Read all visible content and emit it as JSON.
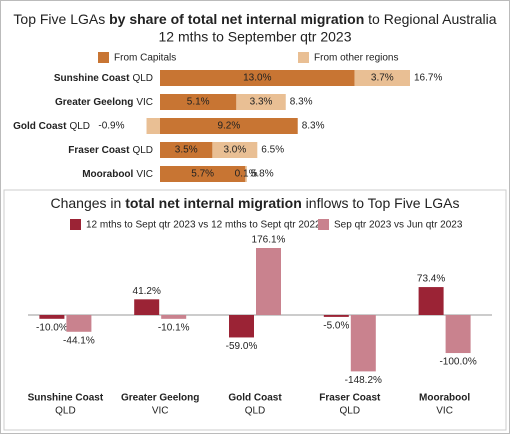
{
  "chart_data": [
    {
      "type": "stacked-bar-horizontal",
      "title_parts": [
        "Top Five LGAs ",
        "by share of total net internal migration",
        " to Regional Australia"
      ],
      "subtitle": "12 mths to September qtr 2023",
      "categories": [
        "Sunshine Coast",
        "Greater Geelong",
        "Gold Coast",
        "Fraser Coast",
        "Moorabool"
      ],
      "category_states": [
        "QLD",
        "VIC",
        "QLD",
        "QLD",
        "VIC"
      ],
      "series": [
        {
          "name": "From Capitals",
          "color": "#c87533",
          "values": [
            13.0,
            5.1,
            9.2,
            3.5,
            5.7
          ],
          "value_labels": [
            "13.0%",
            "5.1%",
            "9.2%",
            "3.5%",
            "5.7%"
          ]
        },
        {
          "name": "From other regions",
          "color": "#e9bf94",
          "values": [
            3.7,
            3.3,
            -0.9,
            3.0,
            0.1
          ],
          "value_labels": [
            "3.7%",
            "3.3%",
            "-0.9%",
            "3.0%",
            "0.1%"
          ]
        }
      ],
      "totals": [
        16.7,
        8.3,
        8.3,
        6.5,
        5.8
      ],
      "total_labels": [
        "16.7%",
        "8.3%",
        "8.3%",
        "6.5%",
        "5.8%"
      ]
    },
    {
      "type": "grouped-bar",
      "title_parts": [
        "Changes in ",
        "total net internal migration",
        " inflows to Top Five LGAs"
      ],
      "categories": [
        "Sunshine Coast",
        "Greater Geelong",
        "Gold Coast",
        "Fraser Coast",
        "Moorabool"
      ],
      "category_states": [
        "QLD",
        "VIC",
        "QLD",
        "QLD",
        "VIC"
      ],
      "series": [
        {
          "name": "12 mths to Sept qtr 2023 vs 12 mths to Sept qtr 2022",
          "color": "#9b2335",
          "values": [
            -10.0,
            41.2,
            -59.0,
            -5.0,
            73.4
          ],
          "value_labels": [
            "-10.0%",
            "41.2%",
            "-59.0%",
            "-5.0%",
            "73.4%"
          ]
        },
        {
          "name": "Sep qtr 2023 vs Jun qtr 2023",
          "color": "#c9828e",
          "values": [
            -44.1,
            -10.1,
            176.1,
            -148.2,
            -100.0
          ],
          "value_labels": [
            "-44.1%",
            "-10.1%",
            "176.1%",
            "-148.2%",
            "-100.0%"
          ]
        }
      ]
    }
  ]
}
